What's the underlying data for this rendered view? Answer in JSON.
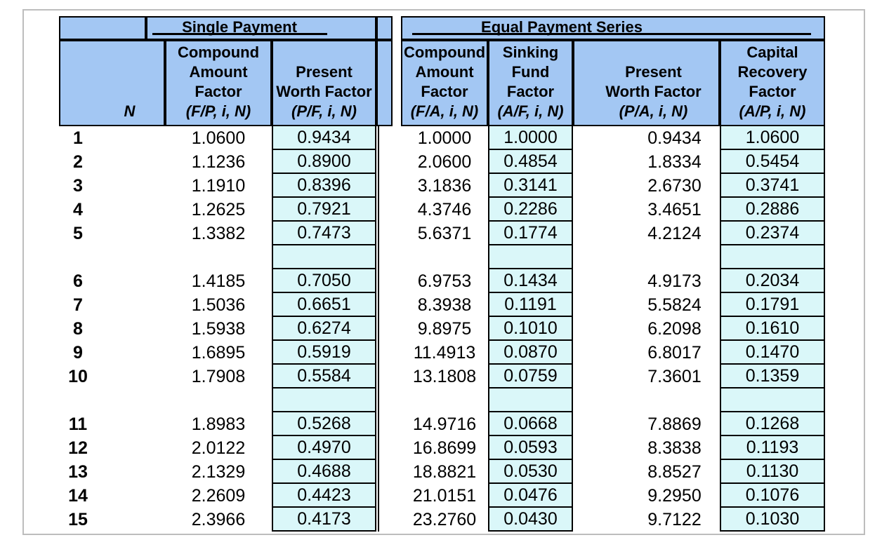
{
  "table": {
    "group_headers": {
      "single_payment": "Single Payment",
      "equal_payment_series": "Equal Payment Series"
    },
    "columns": [
      {
        "key": "n",
        "title_lines": [],
        "formula": "N"
      },
      {
        "key": "fp",
        "title_lines": [
          "Compound",
          "Amount",
          "Factor"
        ],
        "formula": "(F/P, i, N)"
      },
      {
        "key": "pf",
        "title_lines": [
          "Present",
          "Worth Factor"
        ],
        "formula": "(P/F, i, N)"
      },
      {
        "key": "fa",
        "title_lines": [
          "Compound",
          "Amount",
          "Factor"
        ],
        "formula": "(F/A, i, N)"
      },
      {
        "key": "af",
        "title_lines": [
          "Sinking",
          "Fund",
          "Factor"
        ],
        "formula": "(A/F, i, N)"
      },
      {
        "key": "pa",
        "title_lines": [
          "Present",
          "Worth Factor"
        ],
        "formula": "(P/A, i, N)"
      },
      {
        "key": "ap",
        "title_lines": [
          "Capital",
          "Recovery",
          "Factor"
        ],
        "formula": "(A/P, i, N)"
      }
    ],
    "rows": [
      {
        "n": "1",
        "fp": "1.0600",
        "pf": "0.9434",
        "fa": "1.0000",
        "af": "1.0000",
        "pa": "0.9434",
        "ap": "1.0600"
      },
      {
        "n": "2",
        "fp": "1.1236",
        "pf": "0.8900",
        "fa": "2.0600",
        "af": "0.4854",
        "pa": "1.8334",
        "ap": "0.5454"
      },
      {
        "n": "3",
        "fp": "1.1910",
        "pf": "0.8396",
        "fa": "3.1836",
        "af": "0.3141",
        "pa": "2.6730",
        "ap": "0.3741"
      },
      {
        "n": "4",
        "fp": "1.2625",
        "pf": "0.7921",
        "fa": "4.3746",
        "af": "0.2286",
        "pa": "3.4651",
        "ap": "0.2886"
      },
      {
        "n": "5",
        "fp": "1.3382",
        "pf": "0.7473",
        "fa": "5.6371",
        "af": "0.1774",
        "pa": "4.2124",
        "ap": "0.2374"
      },
      {
        "n": "6",
        "fp": "1.4185",
        "pf": "0.7050",
        "fa": "6.9753",
        "af": "0.1434",
        "pa": "4.9173",
        "ap": "0.2034"
      },
      {
        "n": "7",
        "fp": "1.5036",
        "pf": "0.6651",
        "fa": "8.3938",
        "af": "0.1191",
        "pa": "5.5824",
        "ap": "0.1791"
      },
      {
        "n": "8",
        "fp": "1.5938",
        "pf": "0.6274",
        "fa": "9.8975",
        "af": "0.1010",
        "pa": "6.2098",
        "ap": "0.1610"
      },
      {
        "n": "9",
        "fp": "1.6895",
        "pf": "0.5919",
        "fa": "11.4913",
        "af": "0.0870",
        "pa": "6.8017",
        "ap": "0.1470"
      },
      {
        "n": "10",
        "fp": "1.7908",
        "pf": "0.5584",
        "fa": "13.1808",
        "af": "0.0759",
        "pa": "7.3601",
        "ap": "0.1359"
      },
      {
        "n": "11",
        "fp": "1.8983",
        "pf": "0.5268",
        "fa": "14.9716",
        "af": "0.0668",
        "pa": "7.8869",
        "ap": "0.1268"
      },
      {
        "n": "12",
        "fp": "2.0122",
        "pf": "0.4970",
        "fa": "16.8699",
        "af": "0.0593",
        "pa": "8.3838",
        "ap": "0.1193"
      },
      {
        "n": "13",
        "fp": "2.1329",
        "pf": "0.4688",
        "fa": "18.8821",
        "af": "0.0530",
        "pa": "8.8527",
        "ap": "0.1130"
      },
      {
        "n": "14",
        "fp": "2.2609",
        "pf": "0.4423",
        "fa": "21.0151",
        "af": "0.0476",
        "pa": "9.2950",
        "ap": "0.1076"
      },
      {
        "n": "15",
        "fp": "2.3966",
        "pf": "0.4173",
        "fa": "23.2760",
        "af": "0.0430",
        "pa": "9.7122",
        "ap": "0.1030"
      }
    ],
    "group_break_after_rows": [
      5,
      10
    ]
  },
  "colors": {
    "header_blue": "#a3c7f3",
    "cell_cyan": "#daf7f9",
    "frame_gray": "#bdbdbd",
    "border_black": "#000000"
  }
}
